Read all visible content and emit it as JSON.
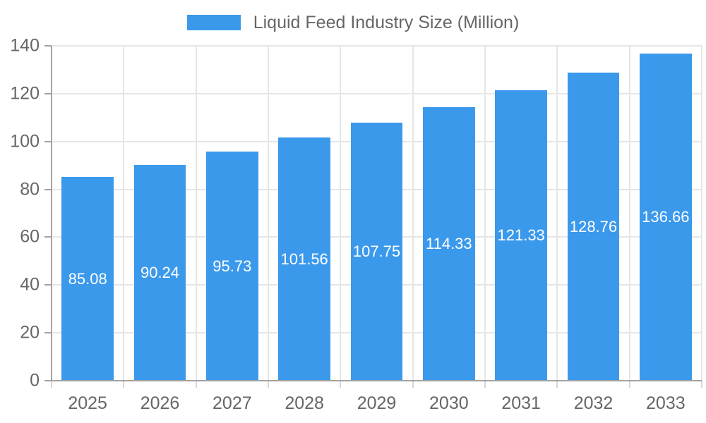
{
  "chart_data": {
    "type": "bar",
    "title": "",
    "series_name": "Liquid Feed Industry Size (Million)",
    "categories": [
      "2025",
      "2026",
      "2027",
      "2028",
      "2029",
      "2030",
      "2031",
      "2032",
      "2033"
    ],
    "values": [
      85.08,
      90.24,
      95.73,
      101.56,
      107.75,
      114.33,
      121.33,
      128.76,
      136.66
    ],
    "value_labels": [
      "85.08",
      "90.24",
      "95.73",
      "101.56",
      "107.75",
      "114.33",
      "121.33",
      "128.76",
      "136.66"
    ],
    "ylim": [
      0,
      140
    ],
    "yticks": [
      0,
      20,
      40,
      60,
      80,
      100,
      120,
      140
    ],
    "xlabel": "",
    "ylabel": "",
    "grid": true,
    "legend_position": "top",
    "colors": {
      "bar": "#3b99ec",
      "grid": "#e6e6e6",
      "axis": "#a3a3a3",
      "minor_tick": "#d6d6d6",
      "tick_text": "#666666",
      "value_label": "#ffffff",
      "legend_text": "#666666"
    }
  }
}
